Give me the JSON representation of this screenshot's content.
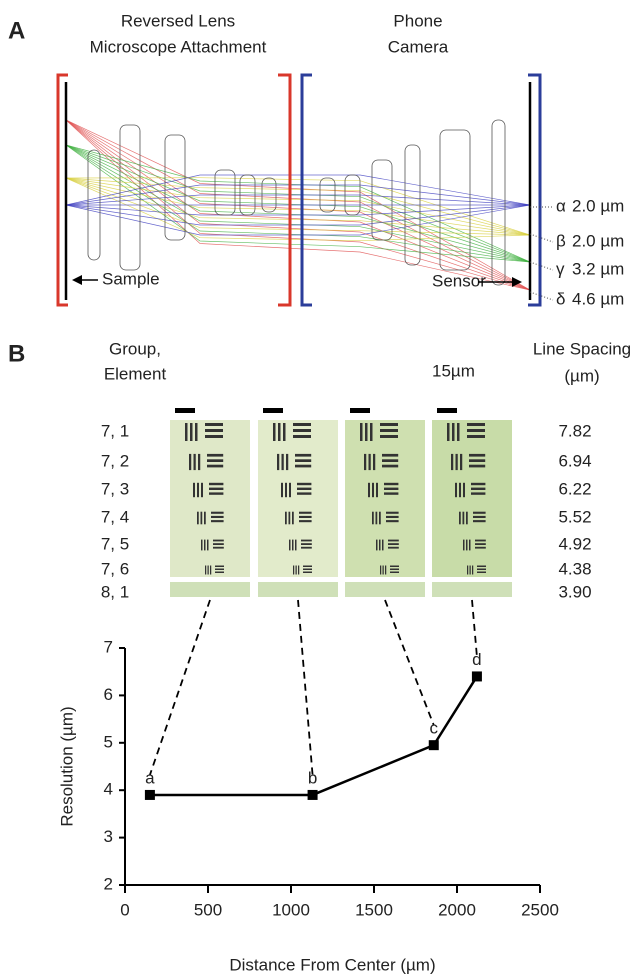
{
  "panel_a": {
    "label": "A",
    "attachment_title": [
      "Reversed Lens",
      "Microscope Attachment"
    ],
    "camera_title": [
      "Phone",
      "Camera"
    ],
    "sample_label": "Sample",
    "sensor_label": "Sensor",
    "spots": [
      {
        "symbol": "α",
        "size": "2.0 µm"
      },
      {
        "symbol": "β",
        "size": "2.0 µm"
      },
      {
        "symbol": "γ",
        "size": "3.2 µm"
      },
      {
        "symbol": "δ",
        "size": "4.6 µm"
      }
    ]
  },
  "panel_b": {
    "label": "B",
    "group_header": [
      "Group,",
      "Element"
    ],
    "spacing_header": [
      "Line Spacing",
      "(µm)"
    ],
    "scale_bar_label": "15µm",
    "rows": [
      {
        "element": "7, 1",
        "spacing": "7.82"
      },
      {
        "element": "7, 2",
        "spacing": "6.94"
      },
      {
        "element": "7, 3",
        "spacing": "6.22"
      },
      {
        "element": "7, 4",
        "spacing": "5.52"
      },
      {
        "element": "7, 5",
        "spacing": "4.92"
      },
      {
        "element": "7, 6",
        "spacing": "4.38"
      },
      {
        "element": "8, 1",
        "spacing": "3.90"
      }
    ]
  },
  "chart_data": {
    "type": "line",
    "x": [
      150,
      1130,
      1860,
      2120
    ],
    "values": [
      3.9,
      3.9,
      4.95,
      6.4
    ],
    "point_labels": [
      "a",
      "b",
      "c",
      "d"
    ],
    "color": "#000000",
    "xlabel": "Distance From Center (µm)",
    "ylabel": "Resolution (µm)",
    "xlim": [
      0,
      2500
    ],
    "xticks": [
      0,
      500,
      1000,
      1500,
      2000,
      2500
    ],
    "ylim": [
      2,
      7
    ],
    "yticks": [
      2,
      3,
      4,
      5,
      6,
      7
    ]
  }
}
